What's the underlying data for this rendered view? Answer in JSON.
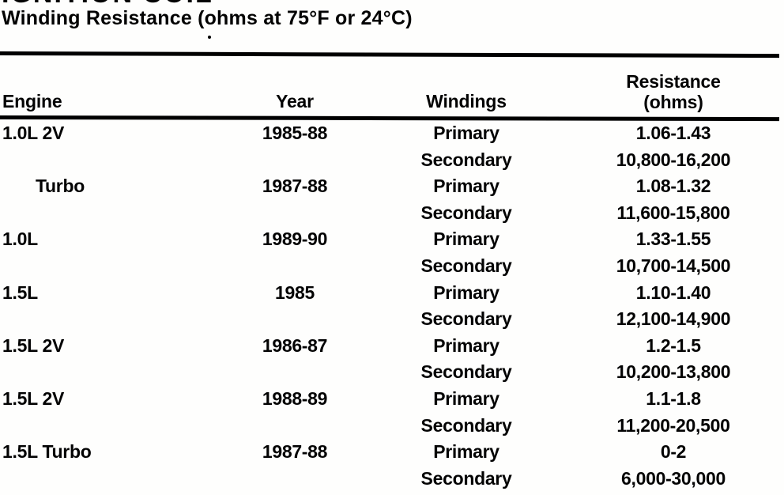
{
  "page": {
    "heading": "IGNITION COIL",
    "subtitle": "Winding Resistance (ohms at 75°F or 24°C)"
  },
  "table": {
    "headers": {
      "engine": "Engine",
      "year": "Year",
      "windings": "Windings",
      "resistance_line1": "Resistance",
      "resistance_line2": "(ohms)"
    },
    "rows": [
      {
        "engine": "1.0L 2V",
        "year": "1985-88",
        "windings": "Primary",
        "resistance": "1.06-1.43",
        "indent": false
      },
      {
        "engine": "",
        "year": "",
        "windings": "Secondary",
        "resistance": "10,800-16,200",
        "indent": false
      },
      {
        "engine": "Turbo",
        "year": "1987-88",
        "windings": "Primary",
        "resistance": "1.08-1.32",
        "indent": true
      },
      {
        "engine": "",
        "year": "",
        "windings": "Secondary",
        "resistance": "11,600-15,800",
        "indent": false
      },
      {
        "engine": "1.0L",
        "year": "1989-90",
        "windings": "Primary",
        "resistance": "1.33-1.55",
        "indent": false
      },
      {
        "engine": "",
        "year": "",
        "windings": "Secondary",
        "resistance": "10,700-14,500",
        "indent": false
      },
      {
        "engine": "1.5L",
        "year": "1985",
        "windings": "Primary",
        "resistance": "1.10-1.40",
        "indent": false
      },
      {
        "engine": "",
        "year": "",
        "windings": "Secondary",
        "resistance": "12,100-14,900",
        "indent": false
      },
      {
        "engine": "1.5L 2V",
        "year": "1986-87",
        "windings": "Primary",
        "resistance": "1.2-1.5",
        "indent": false
      },
      {
        "engine": "",
        "year": "",
        "windings": "Secondary",
        "resistance": "10,200-13,800",
        "indent": false
      },
      {
        "engine": "1.5L 2V",
        "year": "1988-89",
        "windings": "Primary",
        "resistance": "1.1-1.8",
        "indent": false
      },
      {
        "engine": "",
        "year": "",
        "windings": "Secondary",
        "resistance": "11,200-20,500",
        "indent": false
      },
      {
        "engine": "1.5L Turbo",
        "year": "1987-88",
        "windings": "Primary",
        "resistance": "0-2",
        "indent": false
      },
      {
        "engine": "",
        "year": "",
        "windings": "Secondary",
        "resistance": "6,000-30,000",
        "indent": false
      }
    ]
  },
  "colors": {
    "ink": "#030303",
    "paper": "#fefefd"
  }
}
